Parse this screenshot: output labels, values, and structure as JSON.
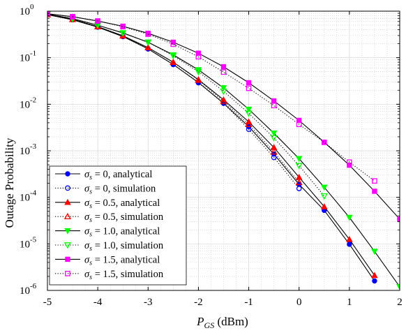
{
  "chart_data": {
    "type": "line",
    "xlabel_main": "P",
    "xlabel_sub": "GS",
    "xlabel_unit": " (dBm)",
    "ylabel": "Outage Probability",
    "xlim": [
      -5,
      2
    ],
    "ylim": [
      1e-06,
      1
    ],
    "yscale": "log",
    "grid": true,
    "legend_placement": "bottom-left",
    "x_ticks": [
      -5,
      -4,
      -3,
      -2,
      -1,
      0,
      1,
      2
    ],
    "x_tick_labels": [
      "-5",
      "-4",
      "-3",
      "-2",
      "-1",
      "0",
      "1",
      "2"
    ],
    "y_ticks": [
      {
        "value": 1,
        "base": "10",
        "exp": "0"
      },
      {
        "value": 0.1,
        "base": "10",
        "exp": "-1"
      },
      {
        "value": 0.01,
        "base": "10",
        "exp": "-2"
      },
      {
        "value": 0.001,
        "base": "10",
        "exp": "-3"
      },
      {
        "value": 0.0001,
        "base": "10",
        "exp": "-4"
      },
      {
        "value": 1e-05,
        "base": "10",
        "exp": "-5"
      },
      {
        "value": 1e-06,
        "base": "10",
        "exp": "-6"
      }
    ],
    "series": [
      {
        "name_sym": "σ",
        "name_sub": "s",
        "name_rest": " = 0, analytical",
        "color": "#0000ff",
        "style": "solid",
        "marker": "circle-filled",
        "x": [
          -5,
          -4.5,
          -4,
          -3.5,
          -3,
          -2.5,
          -2,
          -1.5,
          -1,
          -0.5,
          0,
          0.5,
          1,
          1.5
        ],
        "y": [
          0.84,
          0.655,
          0.455,
          0.285,
          0.155,
          0.0715,
          0.0295,
          0.0105,
          0.0033,
          0.00085,
          0.00019,
          5.25e-05,
          9.8e-06,
          1.6e-06
        ]
      },
      {
        "name_sym": "σ",
        "name_sub": "s",
        "name_rest": " = 0, simulation",
        "color": "#0000ff",
        "style": "dotted",
        "marker": "circle-open",
        "x": [
          -5,
          -4.5,
          -4,
          -3.5,
          -3,
          -2.5,
          -2,
          -1.5,
          -1,
          -0.5,
          0
        ],
        "y": [
          0.84,
          0.655,
          0.455,
          0.285,
          0.155,
          0.0715,
          0.029,
          0.0105,
          0.0029,
          0.00072,
          0.000155
        ]
      },
      {
        "name_sym": "σ",
        "name_sub": "s",
        "name_rest": " = 0.5, analytical",
        "color": "#ff0000",
        "style": "solid",
        "marker": "triangle-filled",
        "x": [
          -5,
          -4.5,
          -4,
          -3.5,
          -3,
          -2.5,
          -2,
          -1.5,
          -1,
          -0.5,
          0,
          0.5,
          1,
          1.5
        ],
        "y": [
          0.845,
          0.665,
          0.465,
          0.295,
          0.165,
          0.08,
          0.034,
          0.0125,
          0.0042,
          0.00118,
          0.00027,
          6.3e-05,
          1.25e-05,
          2.1e-06
        ]
      },
      {
        "name_sym": "σ",
        "name_sub": "s",
        "name_rest": " = 0.5, simulation",
        "color": "#ff0000",
        "style": "dotted",
        "marker": "triangle-open",
        "x": [
          -5,
          -4.5,
          -4,
          -3.5,
          -3,
          -2.5,
          -2,
          -1.5,
          -1,
          -0.5,
          0
        ],
        "y": [
          0.845,
          0.665,
          0.465,
          0.295,
          0.165,
          0.08,
          0.033,
          0.0115,
          0.0037,
          0.00095,
          0.00021
        ]
      },
      {
        "name_sym": "σ",
        "name_sub": "s",
        "name_rest": " = 1.0, analytical",
        "color": "#00ff00",
        "style": "solid",
        "marker": "triangle-down-filled",
        "x": [
          -5,
          -4.5,
          -4,
          -3.5,
          -3,
          -2.5,
          -2,
          -1.5,
          -1,
          -0.5,
          0,
          0.5,
          1,
          1.5,
          2
        ],
        "y": [
          0.86,
          0.69,
          0.5,
          0.34,
          0.215,
          0.115,
          0.055,
          0.0225,
          0.0078,
          0.0024,
          0.00068,
          0.000165,
          3.7e-05,
          6.9e-06,
          1.2e-06
        ]
      },
      {
        "name_sym": "σ",
        "name_sub": "s",
        "name_rest": " = 1.0, simulation",
        "color": "#00ff00",
        "style": "dotted",
        "marker": "triangle-down-open",
        "x": [
          -5,
          -4.5,
          -4,
          -3.5,
          -3,
          -2.5,
          -2,
          -1.5,
          -1,
          -0.5,
          0,
          0.5
        ],
        "y": [
          0.86,
          0.69,
          0.5,
          0.34,
          0.215,
          0.11,
          0.05,
          0.019,
          0.0064,
          0.0019,
          0.00048,
          0.000107
        ]
      },
      {
        "name_sym": "σ",
        "name_sub": "s",
        "name_rest": " = 1.5, analytical",
        "color": "#ff00ff",
        "style": "solid",
        "marker": "square-filled",
        "x": [
          -5,
          -4.5,
          -4,
          -3.5,
          -3,
          -2.5,
          -2,
          -1.5,
          -1,
          -0.5,
          0,
          0.5,
          1,
          1.5,
          2
        ],
        "y": [
          0.88,
          0.76,
          0.615,
          0.475,
          0.335,
          0.215,
          0.125,
          0.064,
          0.029,
          0.0118,
          0.0045,
          0.00153,
          0.00049,
          0.000135,
          3.4e-05
        ]
      },
      {
        "name_sym": "σ",
        "name_sub": "s",
        "name_rest": " = 1.5, simulation",
        "color": "#ff00ff",
        "style": "dotted",
        "marker": "square-open",
        "x": [
          -5,
          -4.5,
          -4,
          -3.5,
          -3,
          -2.5,
          -2,
          -1.5,
          -1,
          -0.5,
          0,
          0.5,
          1,
          1.5
        ],
        "y": [
          0.88,
          0.76,
          0.615,
          0.465,
          0.32,
          0.195,
          0.105,
          0.049,
          0.022,
          0.0094,
          0.0037,
          0.00152,
          0.00057,
          0.000225
        ]
      }
    ]
  }
}
